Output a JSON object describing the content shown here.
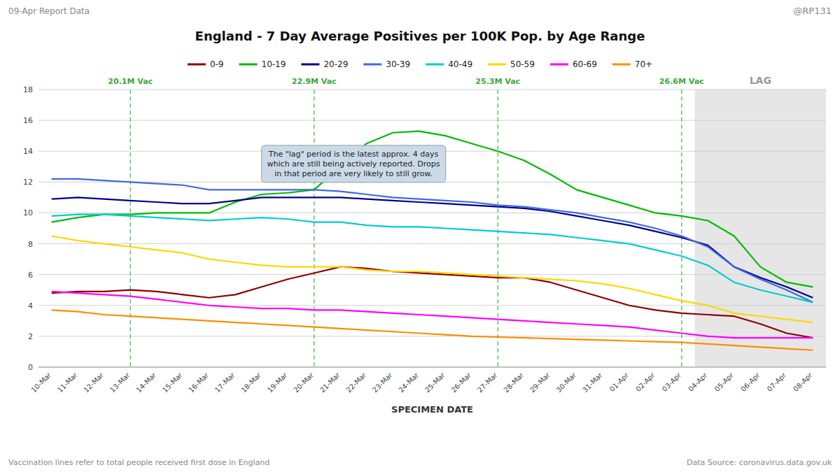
{
  "chart_data": {
    "type": "line",
    "title": "England - 7 Day Average Positives per 100K Pop. by Age Range",
    "subtitle": "09-Apr Report Data",
    "author": "@RP131",
    "xlabel": "SPECIMEN DATE",
    "note": "Vaccination lines refer to total people received first dose in England",
    "source": "Data Source: coronavirus.data.gov.uk",
    "annotation": "The \"lag\" period is the latest approx. 4 days\nwhich are still being actively reported. Drops\nin that period are very likely to still grow.",
    "categories": [
      "10-Mar",
      "11-Mar",
      "12-Mar",
      "13-Mar",
      "14-Mar",
      "15-Mar",
      "16-Mar",
      "17-Mar",
      "18-Mar",
      "19-Mar",
      "20-Mar",
      "21-Mar",
      "22-Mar",
      "23-Mar",
      "24-Mar",
      "25-Mar",
      "26-Mar",
      "27-Mar",
      "28-Mar",
      "29-Mar",
      "30-Mar",
      "31-Mar",
      "01-Apr",
      "02-Apr",
      "03-Apr",
      "04-Apr",
      "05-Apr",
      "06-Apr",
      "07-Apr",
      "08-Apr"
    ],
    "series": [
      {
        "name": "0-9",
        "color": "#8B0000",
        "values": [
          4.8,
          4.9,
          4.9,
          5.0,
          4.9,
          4.7,
          4.5,
          4.7,
          5.2,
          5.7,
          6.1,
          6.5,
          6.4,
          6.2,
          6.1,
          6.0,
          5.9,
          5.8,
          5.8,
          5.5,
          5.0,
          4.5,
          4.0,
          3.7,
          3.5,
          3.4,
          3.3,
          2.8,
          2.2,
          1.9
        ]
      },
      {
        "name": "10-19",
        "color": "#00BB00",
        "values": [
          9.4,
          9.7,
          9.9,
          9.9,
          10.0,
          10.0,
          10.0,
          10.7,
          11.2,
          11.3,
          11.5,
          13.0,
          14.5,
          15.2,
          15.3,
          15.0,
          14.5,
          14.0,
          13.4,
          12.5,
          11.5,
          11.0,
          10.5,
          10.0,
          9.8,
          9.5,
          8.5,
          6.5,
          5.5,
          5.2
        ]
      },
      {
        "name": "20-29",
        "color": "#00008B",
        "values": [
          10.9,
          11.0,
          10.9,
          10.8,
          10.7,
          10.6,
          10.6,
          10.8,
          11.0,
          11.0,
          11.0,
          11.0,
          10.9,
          10.8,
          10.7,
          10.6,
          10.5,
          10.4,
          10.3,
          10.1,
          9.8,
          9.5,
          9.2,
          8.8,
          8.4,
          7.9,
          6.5,
          5.8,
          5.2,
          4.5
        ]
      },
      {
        "name": "30-39",
        "color": "#4169E1",
        "values": [
          12.2,
          12.2,
          12.1,
          12.0,
          11.9,
          11.8,
          11.5,
          11.5,
          11.5,
          11.5,
          11.5,
          11.4,
          11.2,
          11.0,
          10.9,
          10.8,
          10.7,
          10.5,
          10.4,
          10.2,
          10.0,
          9.7,
          9.4,
          9.0,
          8.5,
          7.8,
          6.5,
          5.7,
          5.0,
          4.2
        ]
      },
      {
        "name": "40-49",
        "color": "#00CCCC",
        "values": [
          9.8,
          9.9,
          9.9,
          9.8,
          9.7,
          9.6,
          9.5,
          9.6,
          9.7,
          9.6,
          9.4,
          9.4,
          9.2,
          9.1,
          9.1,
          9.0,
          8.9,
          8.8,
          8.7,
          8.6,
          8.4,
          8.2,
          8.0,
          7.6,
          7.2,
          6.6,
          5.5,
          5.0,
          4.6,
          4.2
        ]
      },
      {
        "name": "50-59",
        "color": "#FFD700",
        "values": [
          8.5,
          8.2,
          8.0,
          7.8,
          7.6,
          7.4,
          7.0,
          6.8,
          6.6,
          6.5,
          6.5,
          6.5,
          6.3,
          6.2,
          6.2,
          6.1,
          6.0,
          5.9,
          5.8,
          5.7,
          5.6,
          5.4,
          5.1,
          4.7,
          4.3,
          4.0,
          3.5,
          3.3,
          3.1,
          2.9
        ]
      },
      {
        "name": "60-69",
        "color": "#FF00FF",
        "values": [
          4.9,
          4.8,
          4.7,
          4.6,
          4.4,
          4.2,
          4.0,
          3.9,
          3.8,
          3.8,
          3.7,
          3.7,
          3.6,
          3.5,
          3.4,
          3.3,
          3.2,
          3.1,
          3.0,
          2.9,
          2.8,
          2.7,
          2.6,
          2.4,
          2.2,
          2.0,
          1.9,
          1.9,
          1.9,
          1.9
        ]
      },
      {
        "name": "70+",
        "color": "#FF8C00",
        "values": [
          3.7,
          3.6,
          3.4,
          3.3,
          3.2,
          3.1,
          3.0,
          2.9,
          2.8,
          2.7,
          2.6,
          2.5,
          2.4,
          2.3,
          2.2,
          2.1,
          2.0,
          1.95,
          1.9,
          1.85,
          1.8,
          1.75,
          1.7,
          1.65,
          1.6,
          1.5,
          1.4,
          1.3,
          1.2,
          1.1
        ]
      }
    ],
    "vertical_lines": [
      {
        "text": "20.1M Vac",
        "x": "13-Mar"
      },
      {
        "text": "22.9M Vac",
        "x": "20-Mar"
      },
      {
        "text": "25.3M Vac",
        "x": "27-Mar"
      },
      {
        "text": "26.6M Vac",
        "x": "03-Apr"
      }
    ],
    "shaded_region": {
      "text": "LAG",
      "x": [
        "04-Apr",
        "08-Apr"
      ]
    },
    "ylim": [
      0,
      18
    ],
    "yticks": [
      0,
      2,
      4,
      6,
      8,
      10,
      12,
      14,
      16,
      18
    ],
    "grid": true,
    "legend": "top"
  }
}
